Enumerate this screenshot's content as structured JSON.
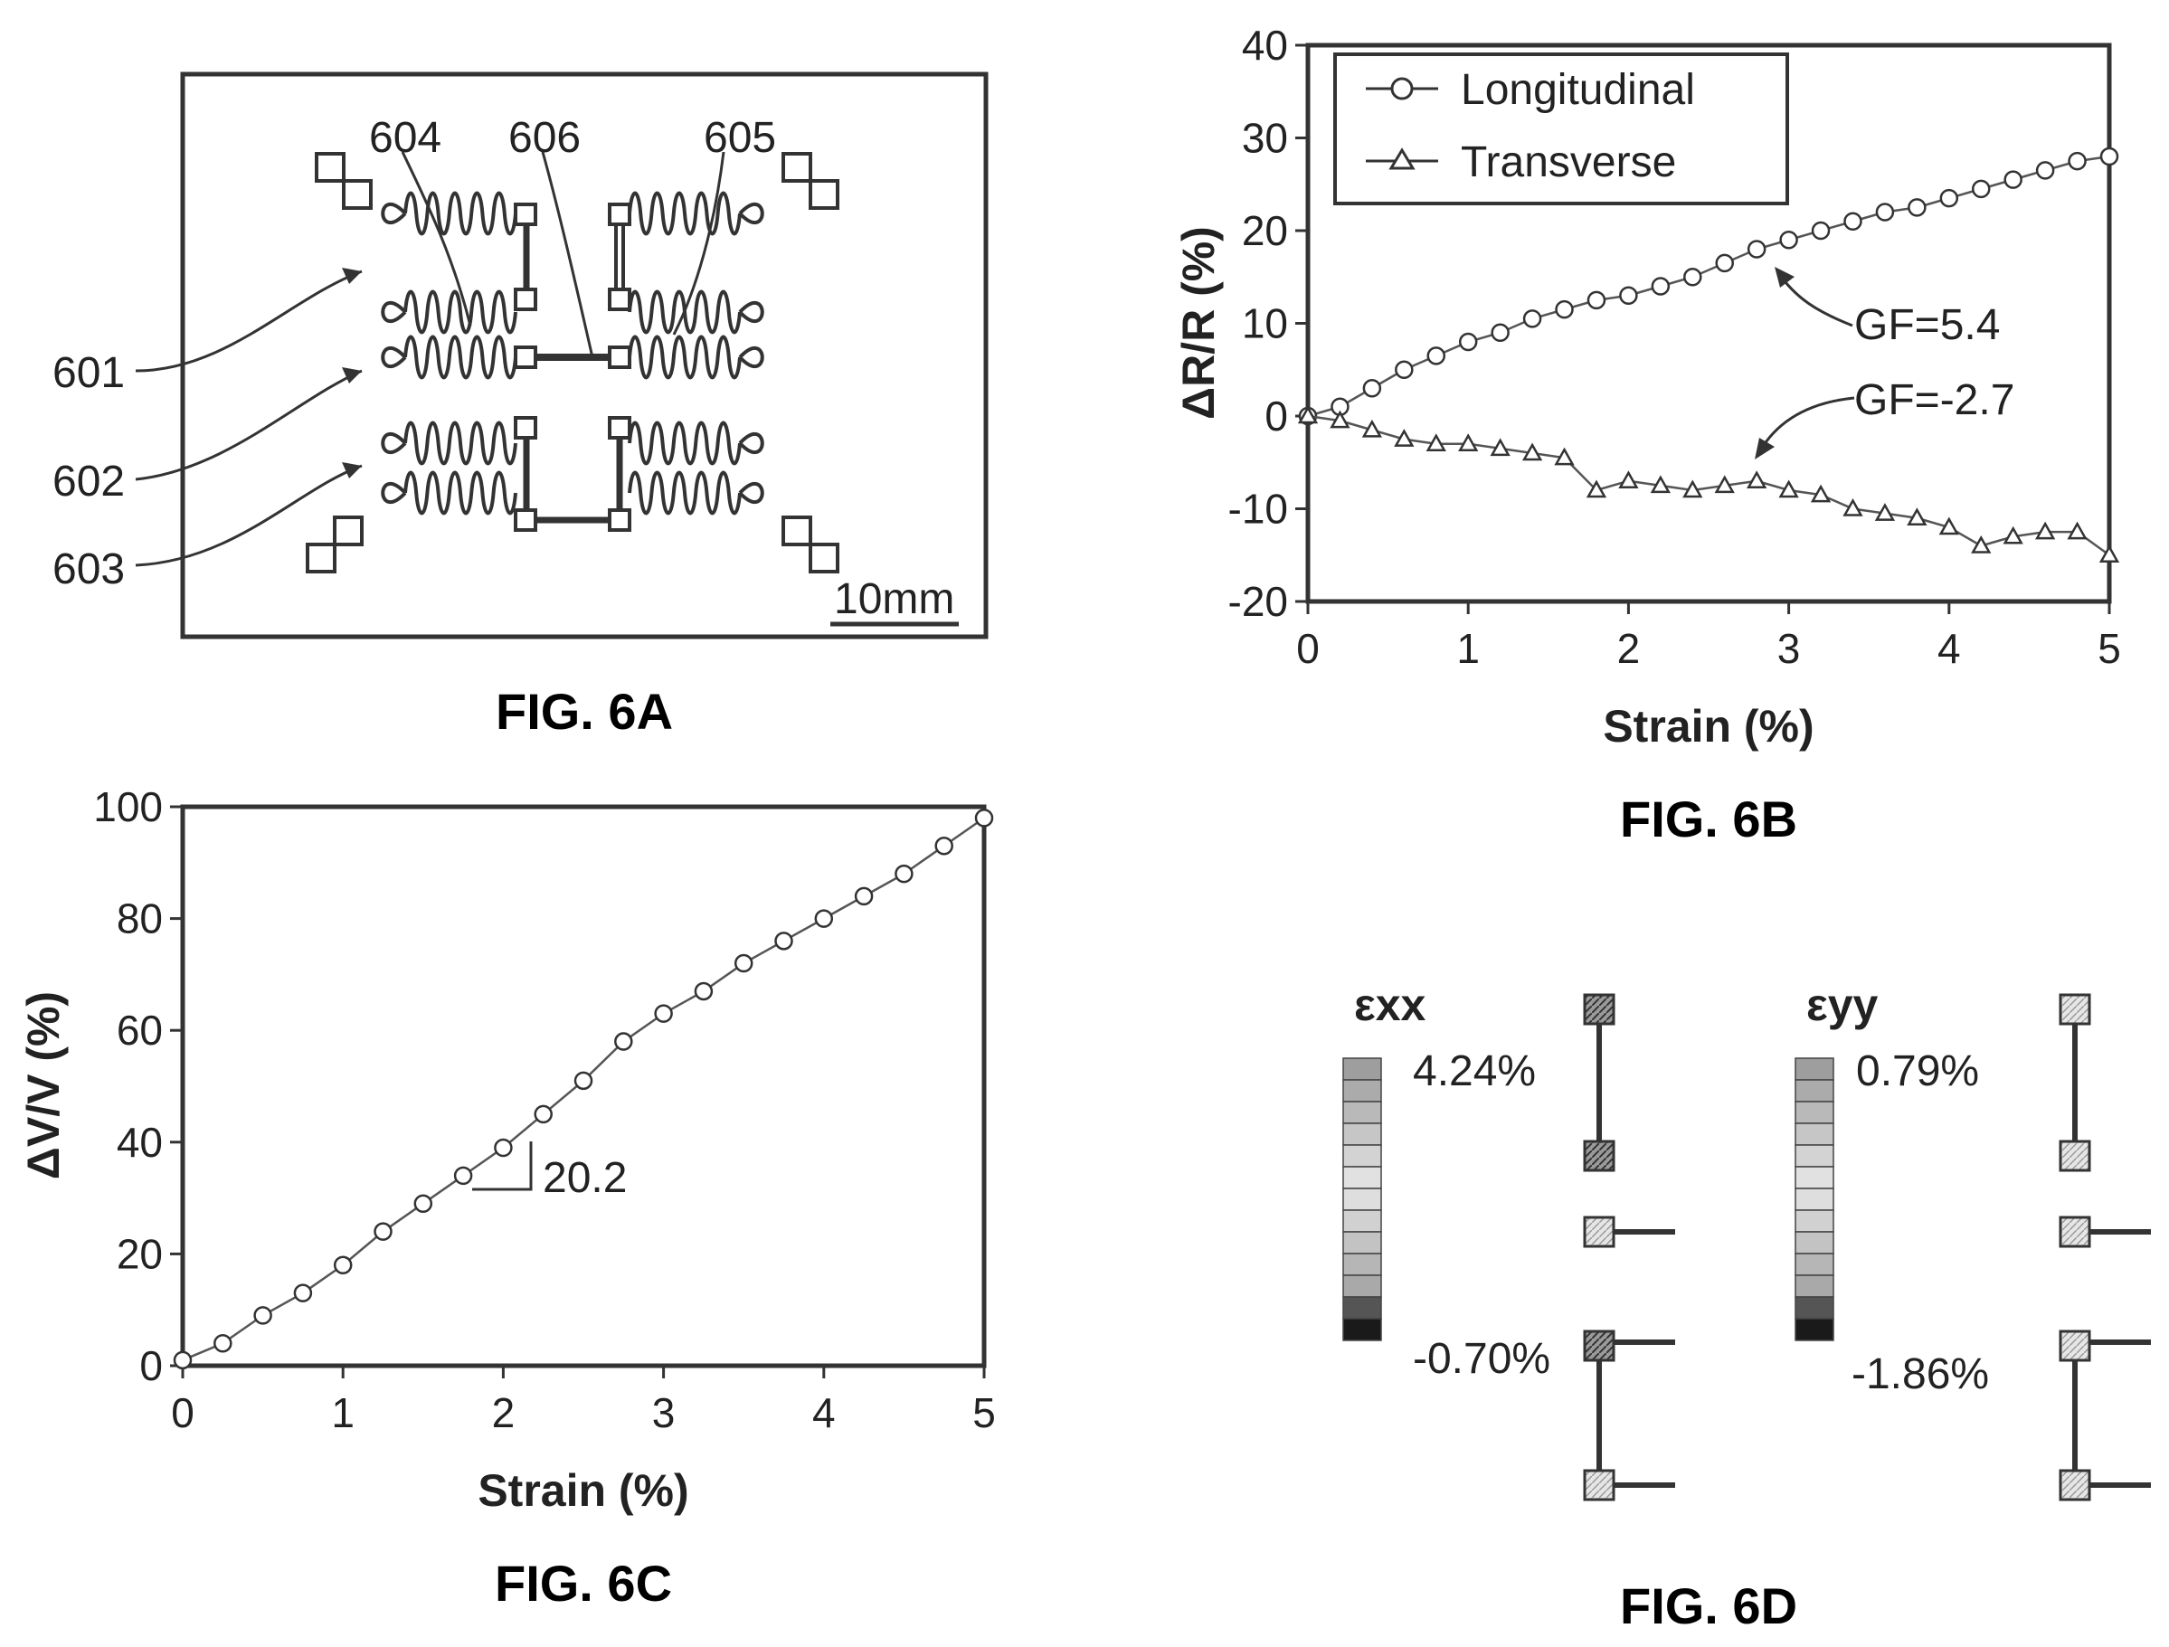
{
  "figures": {
    "fig6a": {
      "caption": "FIG. 6A",
      "scale_bar": "10mm",
      "refs": [
        "601",
        "602",
        "603",
        "604",
        "605",
        "606"
      ]
    },
    "fig6b": {
      "caption": "FIG. 6B"
    },
    "fig6c": {
      "caption": "FIG. 6C"
    },
    "fig6d": {
      "caption": "FIG. 6D",
      "exx": {
        "label": "εxx",
        "max": "4.24%",
        "min": "-0.70%"
      },
      "eyy": {
        "label": "εyy",
        "max": "0.79%",
        "min": "-1.86%"
      }
    }
  },
  "chart_data": [
    {
      "id": "fig6b",
      "type": "scatter",
      "xlabel": "Strain (%)",
      "ylabel": "ΔR/R (%)",
      "xlim": [
        0,
        5
      ],
      "ylim": [
        -20,
        40
      ],
      "xticks": [
        "0",
        "1",
        "2",
        "3",
        "4",
        "5"
      ],
      "yticks": [
        "40",
        "30",
        "20",
        "10",
        "0",
        "-10",
        "-20"
      ],
      "legend": "top-left",
      "series": [
        {
          "name": "Longitudinal",
          "marker": "circle",
          "x": [
            0,
            0.2,
            0.4,
            0.6,
            0.8,
            1.0,
            1.2,
            1.4,
            1.6,
            1.8,
            2.0,
            2.2,
            2.4,
            2.6,
            2.8,
            3.0,
            3.2,
            3.4,
            3.6,
            3.8,
            4.0,
            4.2,
            4.4,
            4.6,
            4.8,
            5.0
          ],
          "y": [
            0,
            1,
            3,
            5,
            6.5,
            8,
            9,
            10.5,
            11.5,
            12.5,
            13,
            14,
            15,
            16.5,
            18,
            19,
            20,
            21,
            22,
            22.5,
            23.5,
            24.5,
            25.5,
            26.5,
            27.5,
            28
          ]
        },
        {
          "name": "Transverse",
          "marker": "triangle",
          "x": [
            0,
            0.2,
            0.4,
            0.6,
            0.8,
            1.0,
            1.2,
            1.4,
            1.6,
            1.8,
            2.0,
            2.2,
            2.4,
            2.6,
            2.8,
            3.0,
            3.2,
            3.4,
            3.6,
            3.8,
            4.0,
            4.2,
            4.4,
            4.6,
            4.8,
            5.0
          ],
          "y": [
            0,
            -0.5,
            -1.5,
            -2.5,
            -3,
            -3,
            -3.5,
            -4,
            -4.5,
            -8,
            -7,
            -7.5,
            -8,
            -7.5,
            -7,
            -8,
            -8.5,
            -10,
            -10.5,
            -11,
            -12,
            -14,
            -13,
            -12.5,
            -12.5,
            -15
          ]
        }
      ],
      "annotations": [
        {
          "text": "GF=5.4",
          "x": 3.5,
          "y": 10
        },
        {
          "text": "GF=-2.7",
          "x": 3.5,
          "y": 2
        }
      ]
    },
    {
      "id": "fig6c",
      "type": "scatter",
      "xlabel": "Strain (%)",
      "ylabel": "ΔV/V (%)",
      "xlim": [
        0,
        5
      ],
      "ylim": [
        0,
        100
      ],
      "xticks": [
        "0",
        "1",
        "2",
        "3",
        "4",
        "5"
      ],
      "yticks": [
        "100",
        "80",
        "60",
        "40",
        "20",
        "0"
      ],
      "series": [
        {
          "marker": "circle",
          "x": [
            0,
            0.25,
            0.5,
            0.75,
            1.0,
            1.25,
            1.5,
            1.75,
            2.0,
            2.25,
            2.5,
            2.75,
            3.0,
            3.25,
            3.5,
            3.75,
            4.0,
            4.25,
            4.5,
            4.75,
            5.0
          ],
          "y": [
            1,
            4,
            9,
            13,
            18,
            24,
            29,
            34,
            39,
            45,
            51,
            58,
            63,
            67,
            72,
            76,
            80,
            84,
            88,
            93,
            98
          ]
        }
      ],
      "annotations": [
        {
          "text": "20.2",
          "x": 2.0,
          "y": 33
        }
      ]
    }
  ]
}
